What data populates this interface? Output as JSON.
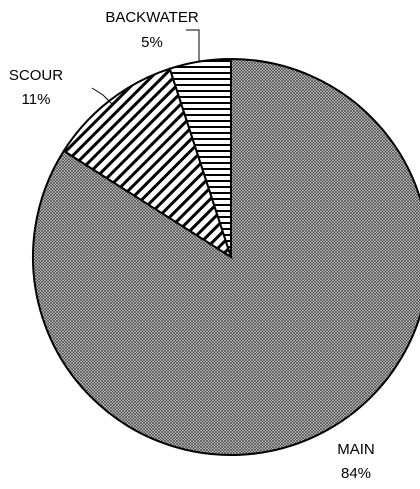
{
  "chart_data": {
    "type": "pie",
    "categories": [
      "MAIN",
      "SCOUR",
      "BACKWATER"
    ],
    "values": [
      84,
      11,
      5
    ],
    "value_labels": [
      "84%",
      "11%",
      "5%"
    ],
    "patterns": [
      "crosshatch",
      "diagonal",
      "horizontal"
    ]
  }
}
